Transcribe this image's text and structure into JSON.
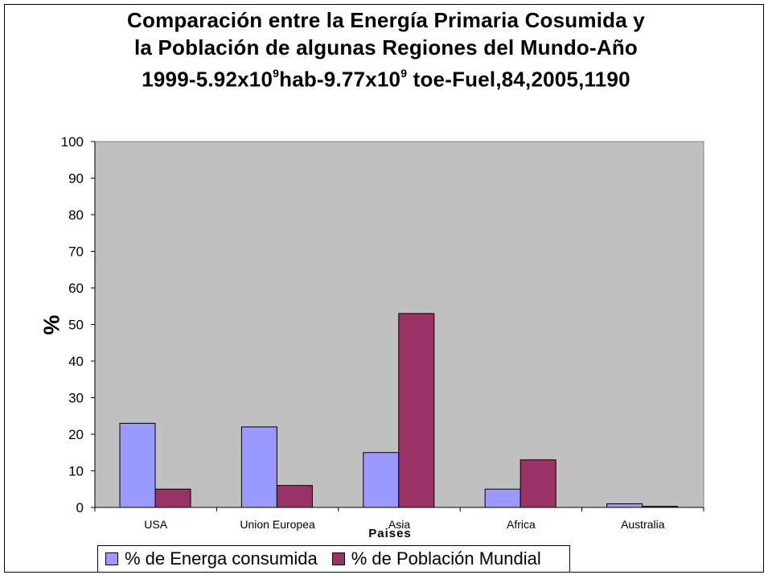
{
  "chart_data": {
    "type": "bar",
    "title_line1": "Comparación entre la Energía Primaria Cosumida y",
    "title_line2": "la Población de algunas Regiones del Mundo-Año",
    "title_line3_a": "1999-5.92x10",
    "title_line3_sup1": "9",
    "title_line3_b": "hab-9.77x10",
    "title_line3_sup2": "9",
    "title_line3_c": " toe-Fuel,84,2005,1190",
    "categories": [
      "USA",
      "Union Europea",
      "Asia",
      "Africa",
      "Australia"
    ],
    "series": [
      {
        "name": "% de Energa consumida",
        "values": [
          23,
          22,
          15,
          5,
          1
        ],
        "color": "#9999ff"
      },
      {
        "name": "% de Población Mundial",
        "values": [
          5,
          6,
          53,
          13,
          0.3
        ],
        "color": "#993366"
      }
    ],
    "xlabel": "Paises",
    "ylabel": "%",
    "ylim": [
      0,
      100
    ],
    "yticks": [
      0,
      10,
      20,
      30,
      40,
      50,
      60,
      70,
      80,
      90,
      100
    ],
    "grid": false,
    "plot_background": "#c0c0c0",
    "legend_position": "bottom"
  }
}
